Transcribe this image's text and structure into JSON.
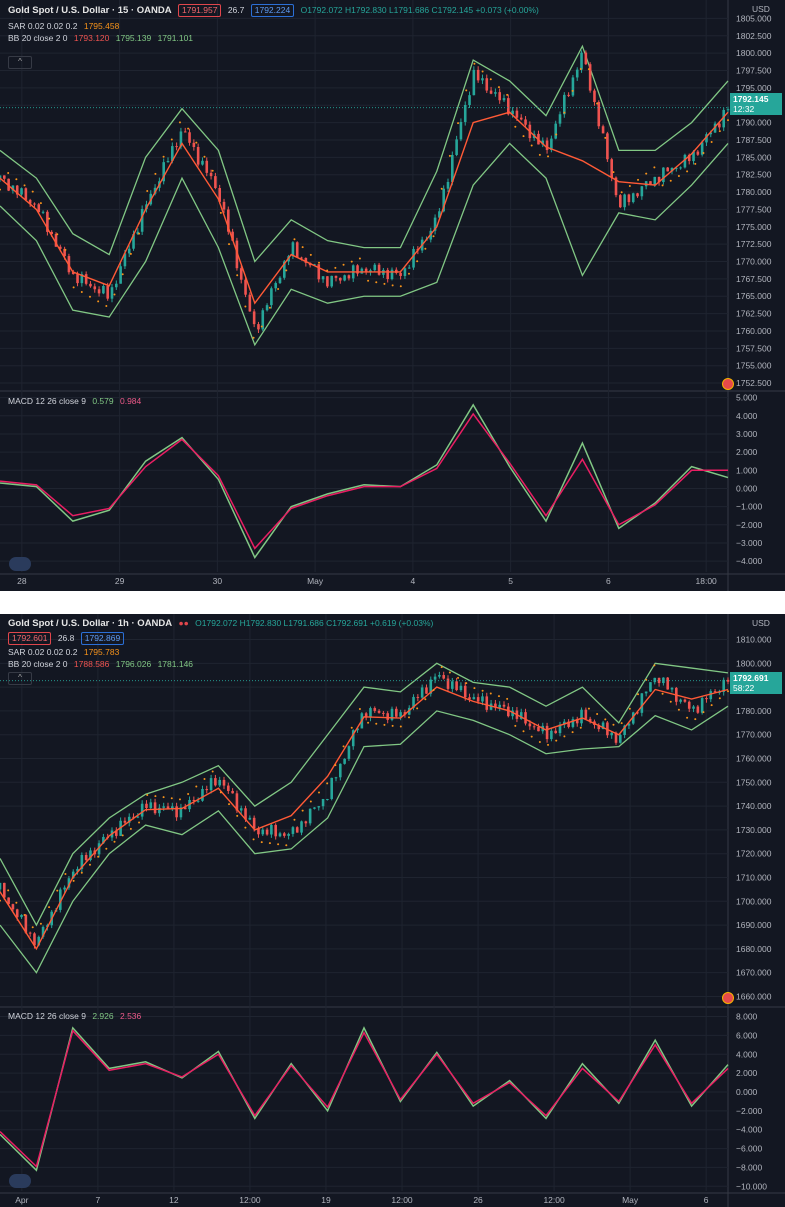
{
  "charts": [
    {
      "header": {
        "title": "Gold Spot / U.S. Dollar · 15 · OANDA",
        "bid": "1791.957",
        "spread": "26.7",
        "ask": "1792.224",
        "ohlc": "O1792.072 H1792.830 L1791.686 C1792.145 +0.073 (+0.00%)",
        "sar_label": "SAR 0.02 0.02 0.2",
        "sar_value": "1795.458",
        "bb_label": "BB 20 close 2 0",
        "bb_basis": "1793.120",
        "bb_upper": "1795.139",
        "bb_lower": "1791.101",
        "macd_label": "MACD 12 26 close 9",
        "macd_value": "0.579",
        "macd_signal": "0.984",
        "currency": "USD",
        "last_price": "1792.145",
        "countdown": "12:32"
      },
      "chart_data": {
        "type": "line",
        "price_ticks": [
          "1805.000",
          "1802.500",
          "1800.000",
          "1797.500",
          "1795.000",
          "1792.500",
          "1790.000",
          "1787.500",
          "1785.000",
          "1782.500",
          "1780.000",
          "1777.500",
          "1775.000",
          "1772.500",
          "1770.000",
          "1767.500",
          "1765.000",
          "1762.500",
          "1760.000",
          "1757.500",
          "1755.000",
          "1752.500"
        ],
        "macd_ticks": [
          "5.000",
          "4.000",
          "3.000",
          "2.000",
          "1.000",
          "0.000",
          "−1.000",
          "−2.000",
          "−3.000",
          "−4.000"
        ],
        "time_ticks": [
          "28",
          "29",
          "30",
          "May",
          "4",
          "5",
          "6",
          "18:00"
        ],
        "x": [
          0,
          5,
          10,
          15,
          20,
          25,
          30,
          35,
          40,
          45,
          50,
          55,
          60,
          65,
          70,
          75,
          80,
          85,
          90,
          95,
          100
        ],
        "price_ylim": [
          1751.5,
          1806.5
        ],
        "macd_ylim": [
          -4.6,
          5.2
        ],
        "series": [
          {
            "name": "price",
            "values": [
              1782,
              1778,
              1768,
              1765,
              1778,
              1789,
              1780,
              1760,
              1772,
              1767,
              1769,
              1768,
              1776,
              1797,
              1792,
              1786,
              1800,
              1778,
              1782,
              1785,
              1792
            ]
          },
          {
            "name": "upper",
            "values": [
              1786,
              1782,
              1774,
              1771,
              1785,
              1792,
              1786,
              1770,
              1776,
              1773,
              1772,
              1772,
              1783,
              1799,
              1796,
              1791,
              1801,
              1786,
              1786,
              1790,
              1796
            ]
          },
          {
            "name": "lower",
            "values": [
              1778,
              1773,
              1763,
              1762,
              1770,
              1782,
              1772,
              1758,
              1766,
              1764,
              1765,
              1765,
              1767,
              1781,
              1787,
              1782,
              1768,
              1777,
              1776,
              1781,
              1787
            ]
          },
          {
            "name": "MACD",
            "values": [
              0.3,
              0.1,
              -1.8,
              -1.2,
              1.5,
              2.8,
              0.5,
              -3.8,
              -1.0,
              -0.3,
              0.2,
              0.1,
              1.3,
              4.6,
              1.2,
              -1.8,
              2.5,
              -2.2,
              -0.8,
              1.2,
              0.6
            ]
          },
          {
            "name": "signal",
            "values": [
              0.4,
              0.2,
              -1.5,
              -1.1,
              1.2,
              2.7,
              0.7,
              -3.3,
              -1.1,
              -0.4,
              0.1,
              0.1,
              1.1,
              4.1,
              1.4,
              -1.5,
              1.6,
              -2.0,
              -0.9,
              1.0,
              1.0
            ]
          }
        ]
      }
    },
    {
      "header": {
        "title": "Gold Spot / U.S. Dollar · 1h · OANDA",
        "bid": "1792.601",
        "spread": "26.8",
        "ask": "1792.869",
        "ohlc": "O1792.072 H1792.830 L1791.686 C1792.691 +0.619 (+0.03%)",
        "sar_label": "SAR 0.02 0.02 0.2",
        "sar_value": "1795.783",
        "bb_label": "BB 20 close 2 0",
        "bb_basis": "1788.586",
        "bb_upper": "1796.026",
        "bb_lower": "1781.146",
        "macd_label": "MACD 12 26 close 9",
        "macd_value": "2.926",
        "macd_signal": "2.536",
        "currency": "USD",
        "last_price": "1792.691",
        "countdown": "58:22"
      },
      "chart_data": {
        "type": "line",
        "price_ticks": [
          "1810.000",
          "1800.000",
          "1790.000",
          "1780.000",
          "1770.000",
          "1760.000",
          "1750.000",
          "1740.000",
          "1730.000",
          "1720.000",
          "1710.000",
          "1700.000",
          "1690.000",
          "1680.000",
          "1670.000",
          "1660.000"
        ],
        "macd_ticks": [
          "8.000",
          "6.000",
          "4.000",
          "2.000",
          "0.000",
          "−2.000",
          "−4.000",
          "−6.000",
          "−8.000",
          "−10.000"
        ],
        "time_ticks": [
          "Apr",
          "7",
          "12",
          "12:00",
          "19",
          "12:00",
          "26",
          "12:00",
          "May",
          "6"
        ],
        "x": [
          0,
          5,
          10,
          15,
          20,
          25,
          30,
          35,
          40,
          45,
          50,
          55,
          60,
          65,
          70,
          75,
          80,
          85,
          90,
          95,
          100
        ],
        "price_ylim": [
          1656,
          1814
        ],
        "macd_ylim": [
          -10.5,
          8.8
        ],
        "series": [
          {
            "name": "price",
            "values": [
              1705,
              1682,
              1713,
              1728,
              1740,
              1738,
              1752,
              1730,
              1728,
              1745,
              1780,
              1778,
              1795,
              1785,
              1780,
              1770,
              1778,
              1768,
              1795,
              1780,
              1793
            ]
          },
          {
            "name": "upper",
            "values": [
              1718,
              1690,
              1720,
              1735,
              1745,
              1750,
              1757,
              1740,
              1750,
              1770,
              1790,
              1788,
              1800,
              1792,
              1790,
              1782,
              1790,
              1775,
              1800,
              1798,
              1796
            ]
          },
          {
            "name": "lower",
            "values": [
              1690,
              1670,
              1700,
              1720,
              1732,
              1728,
              1738,
              1720,
              1722,
              1735,
              1765,
              1766,
              1780,
              1776,
              1770,
              1762,
              1764,
              1765,
              1778,
              1772,
              1782
            ]
          },
          {
            "name": "MACD",
            "values": [
              -4.5,
              -8.3,
              6.8,
              2.5,
              3.2,
              1.5,
              4.3,
              -2.8,
              3.0,
              -2.0,
              6.8,
              -1.0,
              4.2,
              -1.5,
              1.2,
              -2.8,
              3.0,
              -1.2,
              5.5,
              -1.5,
              2.9
            ]
          },
          {
            "name": "signal",
            "values": [
              -4.2,
              -7.9,
              6.5,
              2.3,
              3.0,
              1.6,
              4.0,
              -2.5,
              2.8,
              -1.6,
              6.3,
              -0.8,
              4.0,
              -1.2,
              1.0,
              -2.5,
              2.5,
              -1.0,
              5.0,
              -1.2,
              2.5
            ]
          }
        ]
      }
    }
  ]
}
